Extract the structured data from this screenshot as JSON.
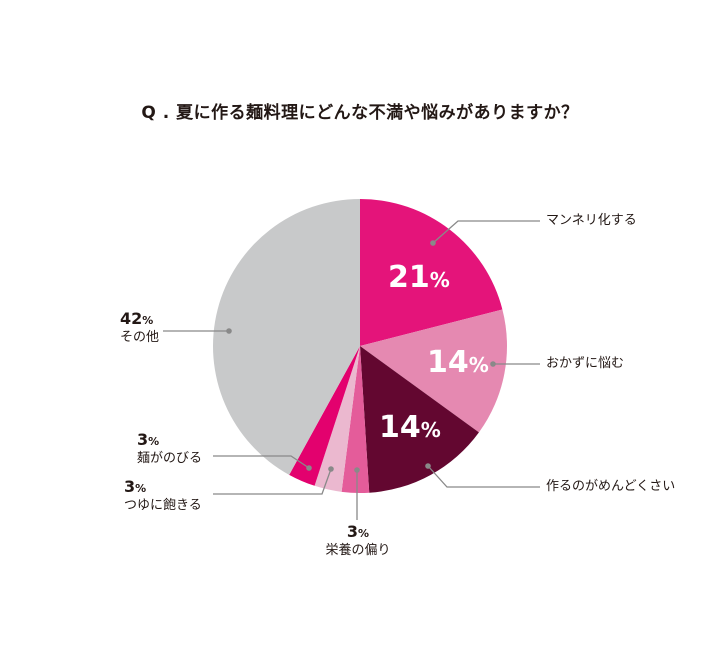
{
  "title": "Q . 夏に作る麺料理にどんな不満や悩みがありますか？",
  "chart_data": {
    "type": "pie",
    "title": "Q . 夏に作る麺料理にどんな不満や悩みがありますか？",
    "start_angle": "12 o'clock, clockwise",
    "categories": [
      "マンネリ化する",
      "おかずに悩む",
      "作るのがめんどくさい",
      "栄養の偏り",
      "つゆに飽きる",
      "麺がのびる",
      "その他"
    ],
    "values": [
      21,
      14,
      14,
      3,
      3,
      3,
      42
    ],
    "unit": "%",
    "colors": [
      "#e4147a",
      "#e589b1",
      "#630730",
      "#e45c9a",
      "#ebb8cf",
      "#e3016e",
      "#c8c9ca"
    ],
    "labels_inside": [
      "21%",
      "14%",
      "14%"
    ],
    "legend": "none (callout labels)"
  },
  "labels": {
    "s0": {
      "name": "マンネリ化する",
      "pct": "21",
      "unit": "%"
    },
    "s1": {
      "name": "おかずに悩む",
      "pct": "14",
      "unit": "%"
    },
    "s2": {
      "name": "作るのがめんどくさい",
      "pct": "14",
      "unit": "%"
    },
    "s3": {
      "name": "栄養の偏り",
      "pct": "3",
      "unit": "%"
    },
    "s4": {
      "name": "つゆに飽きる",
      "pct": "3",
      "unit": "%"
    },
    "s5": {
      "name": "麺がのびる",
      "pct": "3",
      "unit": "%"
    },
    "s6": {
      "name": "その他",
      "pct": "42",
      "unit": "%"
    }
  }
}
